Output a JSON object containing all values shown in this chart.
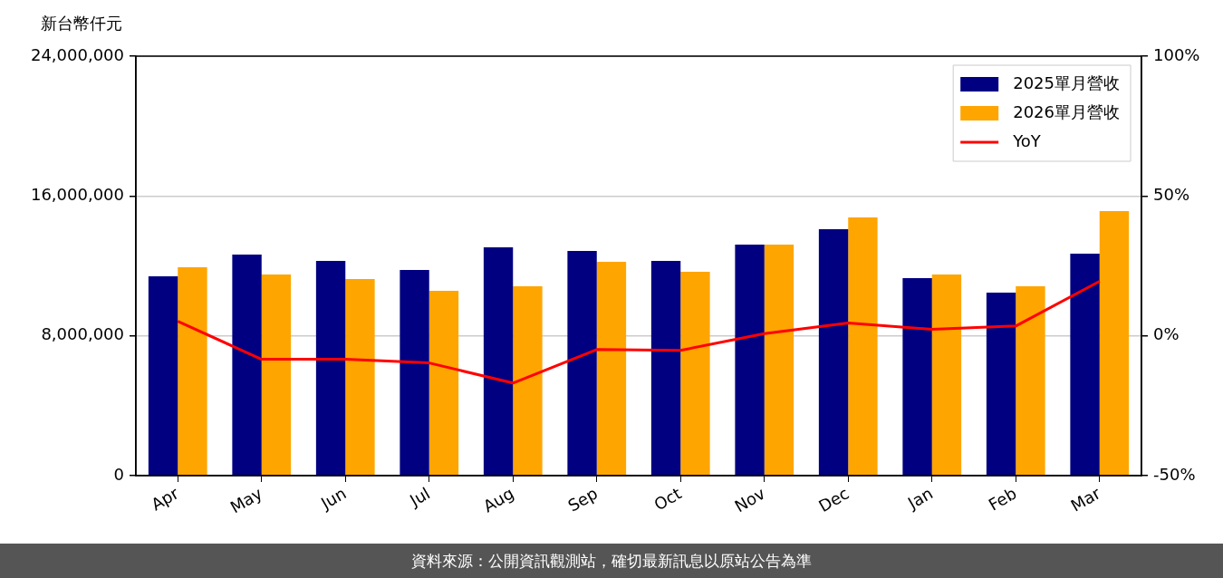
{
  "chart_data": {
    "type": "bar",
    "ylabel": "新台幣仟元",
    "categories": [
      "Apr",
      "May",
      "Jun",
      "Jul",
      "Aug",
      "Sep",
      "Oct",
      "Nov",
      "Dec",
      "Jan",
      "Feb",
      "Mar"
    ],
    "series": [
      {
        "name": "2025單月營收",
        "color": "#000080",
        "values": [
          11400000,
          12650000,
          12290000,
          11770000,
          13060000,
          12860000,
          12290000,
          13220000,
          14100000,
          11300000,
          10470000,
          12700000
        ]
      },
      {
        "name": "2026單月營收",
        "color": "#ffa500",
        "values": [
          11920000,
          11510000,
          11250000,
          10580000,
          10830000,
          12230000,
          11660000,
          13220000,
          14770000,
          11510000,
          10830000,
          15140000
        ]
      },
      {
        "name": "YoY",
        "type": "line",
        "axis": "y2",
        "color": "#ff0000",
        "marker": "none",
        "line_style": "solid",
        "values": [
          5.2,
          -8.4,
          -8.4,
          -9.7,
          -16.9,
          -4.9,
          -5.2,
          0.8,
          4.6,
          2.3,
          3.5,
          19.5
        ]
      }
    ],
    "ylim": [
      0,
      24000000
    ],
    "yticks": [
      0,
      {
        "value": 8000000,
        "label": "8,000,000"
      },
      {
        "value": 16000000,
        "label": "16,000,000"
      },
      {
        "value": 24000000,
        "label": "24,000,000"
      }
    ],
    "y2lim": [
      -50,
      100
    ],
    "y2ticks": [
      {
        "value": -50,
        "label": "-50%"
      },
      {
        "value": 0,
        "label": "0%"
      },
      {
        "value": 50,
        "label": "50%"
      },
      {
        "value": 100,
        "label": "100%"
      }
    ],
    "grid": "y",
    "legend": "top right",
    "annotations": [
      "資料來源：公開資訊觀測站，確切最新訊息以原站公告為準"
    ]
  }
}
